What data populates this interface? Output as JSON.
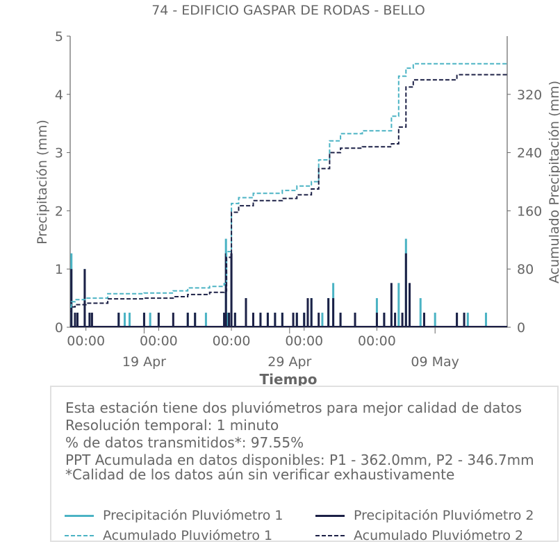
{
  "chart_data": {
    "type": "bar+line",
    "title": "74 - EDIFICIO GASPAR DE RODAS - BELLO",
    "xlabel": "Tiempo",
    "ylabel_left": "Precipitación (mm)",
    "ylabel_right": "Acumulado Precipitación (mm)",
    "x_range_days": [
      "2023-04-13T22:00",
      "2023-05-13T23:00"
    ],
    "ylim_left": [
      0,
      5
    ],
    "ylim_right": [
      0,
      400
    ],
    "yticks_left": [
      "0",
      "1",
      "2",
      "3",
      "4",
      "5"
    ],
    "yticks_right": [
      "0",
      "80",
      "160",
      "240",
      "320"
    ],
    "xticks_minor": [
      "00:00",
      "00:00",
      "00:00",
      "00:00",
      "00:00"
    ],
    "xticks_major": [
      "19 Apr",
      "29 Apr",
      "09 May"
    ],
    "colors": {
      "p1": "#4bb3c4",
      "p2": "#1c2046",
      "text": "#666666"
    },
    "series": [
      {
        "name": "Precipitación Pluviómetro 1",
        "kind": "bar",
        "x": [
          "2023-04-14T00:00",
          "2023-04-14T06:00",
          "2023-04-14T10:00",
          "2023-04-14T22:00",
          "2023-04-15T06:00",
          "2023-04-17T06:00",
          "2023-04-17T16:00",
          "2023-04-18T00:00",
          "2023-04-19T00:00",
          "2023-04-19T10:00",
          "2023-04-20T00:00",
          "2023-04-22T00:00",
          "2023-04-22T12:00",
          "2023-04-23T06:00",
          "2023-04-24T12:00",
          "2023-04-24T15:00",
          "2023-04-24T18:00",
          "2023-04-25T00:00",
          "2023-04-25T06:00",
          "2023-04-26T00:00",
          "2023-04-27T00:00",
          "2023-04-27T12:00",
          "2023-04-28T00:00",
          "2023-04-28T12:00",
          "2023-04-29T12:00",
          "2023-04-30T00:00",
          "2023-04-30T12:00",
          "2023-05-01T06:00",
          "2023-05-01T16:00",
          "2023-05-02T00:00",
          "2023-05-02T12:00",
          "2023-05-03T12:00",
          "2023-05-05T00:00",
          "2023-05-05T12:00",
          "2023-05-06T00:00",
          "2023-05-06T12:00",
          "2023-05-07T00:00",
          "2023-05-08T00:00",
          "2023-05-09T00:00",
          "2023-05-10T12:00",
          "2023-05-11T00:00",
          "2023-05-11T06:00",
          "2023-05-12T12:00"
        ],
        "values": [
          1.27,
          0.25,
          0.25,
          1.0,
          0.25,
          0.25,
          0.25,
          0.25,
          0.25,
          0.25,
          0.25,
          0.25,
          0.25,
          0.25,
          0.25,
          1.52,
          0.25,
          1.27,
          0.25,
          0.5,
          0.25,
          0.25,
          0.25,
          0.25,
          0.25,
          0.25,
          0.5,
          0.25,
          0.5,
          0.76,
          0.25,
          0.25,
          0.5,
          0.25,
          0.25,
          0.76,
          1.52,
          0.5,
          0.25,
          0.25,
          0.25,
          0.25,
          0.25
        ]
      },
      {
        "name": "Precipitación Pluviómetro 2",
        "kind": "bar",
        "x": [
          "2023-04-14T00:00",
          "2023-04-14T06:00",
          "2023-04-14T10:00",
          "2023-04-14T22:00",
          "2023-04-15T06:00",
          "2023-04-15T10:00",
          "2023-04-17T06:00",
          "2023-04-19T00:00",
          "2023-04-20T00:00",
          "2023-04-21T00:00",
          "2023-04-22T00:00",
          "2023-04-22T12:00",
          "2023-04-24T12:00",
          "2023-04-24T15:00",
          "2023-04-24T20:00",
          "2023-04-25T00:00",
          "2023-04-25T06:00",
          "2023-04-26T00:00",
          "2023-04-26T12:00",
          "2023-04-27T00:00",
          "2023-04-27T12:00",
          "2023-04-28T00:00",
          "2023-04-28T12:00",
          "2023-04-29T06:00",
          "2023-04-29T12:00",
          "2023-04-30T00:00",
          "2023-04-30T06:00",
          "2023-04-30T12:00",
          "2023-05-01T00:00",
          "2023-05-01T16:00",
          "2023-05-02T00:00",
          "2023-05-02T12:00",
          "2023-05-03T12:00",
          "2023-05-05T00:00",
          "2023-05-05T12:00",
          "2023-05-06T00:00",
          "2023-05-06T06:00",
          "2023-05-06T18:00",
          "2023-05-07T00:00",
          "2023-05-07T06:00",
          "2023-05-08T06:00",
          "2023-05-10T12:00",
          "2023-05-11T00:00"
        ],
        "values": [
          1.0,
          0.25,
          0.25,
          1.0,
          0.25,
          0.25,
          0.25,
          0.25,
          0.25,
          0.25,
          0.25,
          0.25,
          0.25,
          1.27,
          0.25,
          1.27,
          0.25,
          0.5,
          0.25,
          0.25,
          0.25,
          0.25,
          0.25,
          0.25,
          0.25,
          0.25,
          0.5,
          0.5,
          0.25,
          0.5,
          0.5,
          0.25,
          0.25,
          0.25,
          0.25,
          0.76,
          0.25,
          0.25,
          1.27,
          0.76,
          0.25,
          0.25,
          0.25
        ]
      },
      {
        "name": "Acumulado Pluviómetro 1",
        "kind": "step-line",
        "x": [
          "2023-04-13T22:00",
          "2023-04-14T00:00",
          "2023-04-14T06:00",
          "2023-04-15T00:00",
          "2023-04-16T12:00",
          "2023-04-19T00:00",
          "2023-04-21T00:00",
          "2023-04-22T00:00",
          "2023-04-23T12:00",
          "2023-04-24T12:00",
          "2023-04-24T16:00",
          "2023-04-25T00:00",
          "2023-04-25T12:00",
          "2023-04-26T12:00",
          "2023-04-28T12:00",
          "2023-04-29T12:00",
          "2023-04-30T12:00",
          "2023-05-01T00:00",
          "2023-05-01T18:00",
          "2023-05-02T12:00",
          "2023-05-04T00:00",
          "2023-05-06T00:00",
          "2023-05-06T12:00",
          "2023-05-07T00:00",
          "2023-05-07T12:00",
          "2023-05-10T12:00",
          "2023-05-13T23:00"
        ],
        "values": [
          28,
          35,
          38,
          40,
          46,
          47,
          50,
          54,
          56,
          60,
          104,
          170,
          178,
          184,
          188,
          194,
          200,
          230,
          256,
          266,
          270,
          290,
          345,
          356,
          362,
          362,
          362
        ]
      },
      {
        "name": "Acumulado Pluviómetro 2",
        "kind": "step-line",
        "x": [
          "2023-04-13T22:00",
          "2023-04-14T00:00",
          "2023-04-14T06:00",
          "2023-04-15T00:00",
          "2023-04-16T12:00",
          "2023-04-19T00:00",
          "2023-04-21T00:00",
          "2023-04-22T00:00",
          "2023-04-23T12:00",
          "2023-04-24T12:00",
          "2023-04-24T16:00",
          "2023-04-25T00:00",
          "2023-04-25T12:00",
          "2023-04-26T12:00",
          "2023-04-28T12:00",
          "2023-04-29T12:00",
          "2023-04-30T12:00",
          "2023-05-01T00:00",
          "2023-05-01T18:00",
          "2023-05-02T12:00",
          "2023-05-04T00:00",
          "2023-05-06T00:00",
          "2023-05-06T12:00",
          "2023-05-07T00:00",
          "2023-05-07T12:00",
          "2023-05-10T12:00",
          "2023-05-13T23:00"
        ],
        "values": [
          22,
          28,
          31,
          33,
          39,
          40,
          42,
          45,
          48,
          50,
          96,
          158,
          167,
          174,
          177,
          182,
          190,
          218,
          240,
          246,
          248,
          252,
          275,
          330,
          340,
          347,
          347
        ]
      }
    ]
  },
  "info": {
    "lines": [
      "Esta estación tiene dos pluviómetros para mejor calidad de datos",
      "Resolución temporal: 1 minuto",
      "% de datos transmitidos*: 97.55%",
      "PPT Acumulada en datos disponibles: P1 - 362.0mm, P2 - 346.7mm",
      "*Calidad de los datos aún sin verificar exhaustivamente"
    ]
  },
  "legend": {
    "p1_bar": "Precipitación Pluviómetro 1",
    "p2_bar": "Precipitación Pluviómetro 2",
    "p1_acc": "Acumulado Pluviómetro 1",
    "p2_acc": "Acumulado Pluviómetro 2"
  }
}
